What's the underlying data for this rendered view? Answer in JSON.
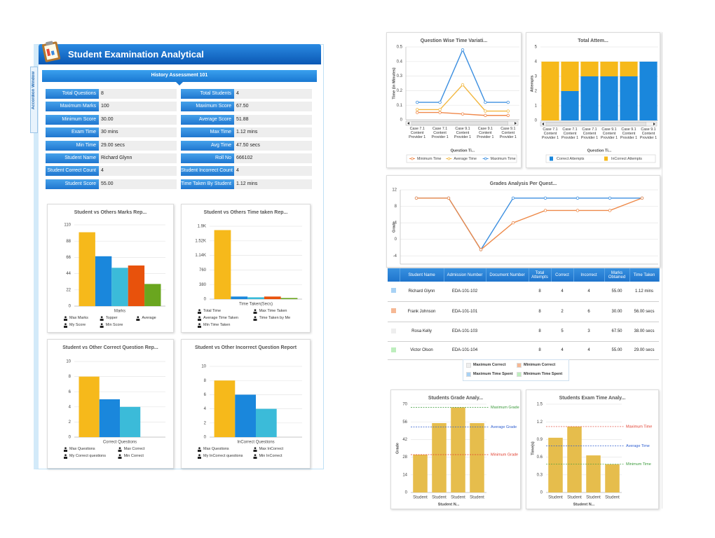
{
  "header": {
    "title": "Student Examination Analytical",
    "subtitle": "History Assessment 101",
    "accordion": "Accordion Window"
  },
  "fields": {
    "left": [
      {
        "label": "Total Questions",
        "value": "8"
      },
      {
        "label": "Maximum Marks",
        "value": "100"
      },
      {
        "label": "Minimum Score",
        "value": "30.00"
      },
      {
        "label": "Exam Time",
        "value": "30 mins"
      },
      {
        "label": "Min Time",
        "value": "29.00 secs"
      },
      {
        "label": "Student Name",
        "value": "Richard Glynn"
      },
      {
        "label": "Student Correct Count",
        "value": "4"
      },
      {
        "label": "Student Score",
        "value": "55.00"
      }
    ],
    "right": [
      {
        "label": "Total Students",
        "value": "4"
      },
      {
        "label": "Maximum Score",
        "value": "67.50"
      },
      {
        "label": "Average Score",
        "value": "51.88"
      },
      {
        "label": "Max Time",
        "value": "1.12 mins"
      },
      {
        "label": "Avg Time",
        "value": "47.50 secs"
      },
      {
        "label": "Roll No",
        "value": "666102"
      },
      {
        "label": "Student Incorrect Count",
        "value": "4"
      },
      {
        "label": "Time Taken By Student",
        "value": "1.12 mins"
      }
    ]
  },
  "chart_data": [
    {
      "type": "bar",
      "title": "Student vs Others Marks Rep...",
      "categories": [
        "Marks"
      ],
      "series": [
        {
          "name": "Max Marks",
          "color": "#f6b91b",
          "values": [
            100
          ]
        },
        {
          "name": "Topper",
          "color": "#1a87dc",
          "values": [
            67.5
          ]
        },
        {
          "name": "Average",
          "color": "#3bbbd9",
          "values": [
            51.88
          ]
        },
        {
          "name": "My Score",
          "color": "#e8520c",
          "values": [
            55
          ]
        },
        {
          "name": "Min Score",
          "color": "#6aa61f",
          "values": [
            30
          ]
        }
      ],
      "ylim": [
        0,
        110
      ],
      "yticks": [
        0,
        22,
        44,
        66,
        88,
        110
      ],
      "grid": true
    },
    {
      "type": "bar",
      "title": "Student vs Others Time taken Rep...",
      "categories": [
        "Time Taken(Secs)"
      ],
      "series": [
        {
          "name": "Total Time",
          "color": "#f6b91b",
          "values": [
            1800
          ]
        },
        {
          "name": "Max Time Taken",
          "color": "#1a87dc",
          "values": [
            67.2
          ]
        },
        {
          "name": "Average Time Taken",
          "color": "#3bbbd9",
          "values": [
            47.5
          ]
        },
        {
          "name": "Time Taken by Me",
          "color": "#e8520c",
          "values": [
            67.2
          ]
        },
        {
          "name": "Min Time Taken",
          "color": "#6aa61f",
          "values": [
            29
          ]
        }
      ],
      "ylim": [
        0,
        1900
      ],
      "yticks": [
        0,
        380,
        760,
        {
          "value": 1140,
          "label": "1.14K"
        },
        {
          "value": 1520,
          "label": "1.52K"
        },
        {
          "value": 1900,
          "label": "1.9K"
        }
      ],
      "grid": true
    },
    {
      "type": "bar",
      "title": "Student vs Other Correct Question Rep...",
      "categories": [
        "Correct Questions"
      ],
      "series": [
        {
          "name": "Max Questions",
          "color": "#f6b91b",
          "values": [
            8
          ]
        },
        {
          "name": "Max Correct",
          "color": "#1a87dc",
          "values": [
            5
          ]
        },
        {
          "name": "My Correct questions",
          "color": "#3bbbd9",
          "values": [
            4
          ]
        },
        {
          "name": "Min Correct",
          "color": "#6aa61f",
          "values": [
            null
          ]
        }
      ],
      "ylim": [
        0,
        10
      ],
      "yticks": [
        0,
        2,
        4,
        6,
        8,
        10
      ],
      "grid": true
    },
    {
      "type": "bar",
      "title": "Student vs Other Incorrect Question Report",
      "categories": [
        "InCorrect Questions"
      ],
      "series": [
        {
          "name": "Max Questions",
          "color": "#f6b91b",
          "values": [
            8
          ]
        },
        {
          "name": "Max InCorrect",
          "color": "#1a87dc",
          "values": [
            6
          ]
        },
        {
          "name": "My InCorrect questions",
          "color": "#3bbbd9",
          "values": [
            4
          ]
        },
        {
          "name": "Min InCorrect",
          "color": "#6aa61f",
          "values": [
            null
          ]
        }
      ],
      "ylim": [
        0,
        10
      ],
      "yticks": [
        0,
        2,
        4,
        6,
        8,
        10
      ],
      "grid": true
    },
    {
      "type": "line",
      "title": "Question Wise Time Variati...",
      "ylabel": "Time (in Minutes)",
      "xlabel": "Question Ti...",
      "categories": [
        "Case 7.1 Content Provider 1",
        "Case 7.1 Content Provider 1",
        "Case 9.1 Content Provider 1",
        "Case 9.1 Content Provider 1",
        "Case 9.1 Content Provider 1"
      ],
      "series": [
        {
          "name": "Minimum Time",
          "color": "#f0884a",
          "values": [
            0.05,
            0.05,
            0.04,
            0.03,
            0.03
          ]
        },
        {
          "name": "Average Time",
          "color": "#f2b740",
          "values": [
            0.07,
            0.07,
            0.24,
            0.06,
            0.06
          ]
        },
        {
          "name": "Maximum Time",
          "color": "#3c8fe0",
          "values": [
            0.12,
            0.12,
            0.48,
            0.12,
            0.12
          ]
        }
      ],
      "ylim": [
        0,
        0.5
      ],
      "yticks": [
        0,
        0.1,
        0.2,
        0.3,
        0.4,
        0.5
      ],
      "grid": true
    },
    {
      "type": "stacked_bar",
      "title": "Total Attem...",
      "ylabel": "Attempts",
      "xlabel": "Question Ti...",
      "categories": [
        "Case 7.1 Content Provider 1",
        "Case 7.1 Content Provider 1",
        "Case 7.1 Content Provider 1",
        "Case 9.1 Content Provider 1",
        "Case 9.1 Content Provider 1",
        "Case 9.1 Content Provider 1"
      ],
      "series": [
        {
          "name": "Correct Attempts",
          "color": "#1a87dc",
          "values": [
            0,
            2,
            3,
            3,
            3,
            4
          ]
        },
        {
          "name": "InCorrect Attempts",
          "color": "#f6b91b",
          "values": [
            4,
            2,
            1,
            1,
            1,
            0
          ]
        }
      ],
      "ylim": [
        0,
        5
      ],
      "yticks": [
        0,
        1,
        2,
        3,
        4,
        5
      ],
      "grid": true
    },
    {
      "type": "line",
      "title": "Grades Analysis Per Quest...",
      "ylabel": "Grade",
      "categories": [
        null,
        null,
        null,
        null,
        null,
        null,
        null,
        null
      ],
      "series": [
        {
          "color": "#3c8fe0",
          "values": [
            10,
            10,
            -2.5,
            10,
            10,
            10,
            10,
            10
          ]
        },
        {
          "color": "#ee8a4a",
          "values": [
            10,
            10,
            -2.5,
            4,
            7,
            7,
            7,
            10
          ]
        }
      ],
      "ylim": [
        -6,
        12
      ],
      "yticks": [
        -4,
        0,
        4,
        8,
        12
      ],
      "grid": true
    },
    {
      "type": "bar",
      "title": "Students Grade Analy...",
      "ylabel": "Grade",
      "xlabel": "Student N...",
      "categories": [
        "Student",
        "Student",
        "Student",
        "Student"
      ],
      "values": [
        30,
        55,
        67.5,
        55
      ],
      "color": "#e6bd4c",
      "reference_lines": [
        {
          "label": "Maximum Grade",
          "value": 67.5,
          "color": "#3a9a3a"
        },
        {
          "label": "Average Grade",
          "value": 51.88,
          "color": "#2f5fd0"
        },
        {
          "label": "Minimum Grade",
          "value": 30,
          "color": "#e03a2a"
        }
      ],
      "ylim": [
        0,
        70
      ],
      "yticks": [
        0,
        14,
        28,
        42,
        56,
        70
      ],
      "grid": true
    },
    {
      "type": "bar",
      "title": "Students Exam Time Analy...",
      "ylabel": "Time(s)",
      "xlabel": "Student N...",
      "categories": [
        "Student",
        "Student",
        "Student",
        "Student"
      ],
      "values": [
        0.93,
        1.12,
        0.63,
        0.48
      ],
      "color": "#e6bd4c",
      "reference_lines": [
        {
          "label": "Maximum Time",
          "value": 1.12,
          "color": "#e03a2a"
        },
        {
          "label": "Average Time",
          "value": 0.79,
          "color": "#2f5fd0"
        },
        {
          "label": "Minimum Time",
          "value": 0.48,
          "color": "#3a9a3a"
        }
      ],
      "ylim": [
        0,
        1.5
      ],
      "yticks": [
        0,
        0.3,
        0.6,
        0.9,
        1.2,
        1.5
      ],
      "grid": true
    }
  ],
  "table": {
    "headers": [
      "Student Name",
      "Admission Number",
      "Document Number",
      "Total Attempts",
      "Correct",
      "Incorrect",
      "Marks Obtained",
      "Time Taken"
    ],
    "rows": [
      {
        "color": "#a8d2f5",
        "name": "Richard Glynn",
        "admission": "EDA-101-102",
        "attempts": "8",
        "correct": "4",
        "incorrect": "4",
        "marks": "55.00",
        "time": "1.12 mins"
      },
      {
        "color": "#f6b894",
        "name": "Frank Johnson",
        "admission": "EDA-101-101",
        "attempts": "8",
        "correct": "2",
        "incorrect": "6",
        "marks": "30.00",
        "time": "56.00 secs"
      },
      {
        "color": "#eeeeee",
        "name": "Rosa Kelly",
        "admission": "EDA-101-103",
        "attempts": "8",
        "correct": "5",
        "incorrect": "3",
        "marks": "67.50",
        "time": "38.00 secs"
      },
      {
        "color": "#bdeebd",
        "name": "Victor Olson",
        "admission": "EDA-101-104",
        "attempts": "8",
        "correct": "4",
        "incorrect": "4",
        "marks": "55.00",
        "time": "29.00 secs"
      }
    ],
    "legend": [
      {
        "label": "Maximum Correct",
        "color": "#eeeeee"
      },
      {
        "label": "Minimum Correct",
        "color": "#f6b894"
      },
      {
        "label": "Maximum Time Spent",
        "color": "#a8d2f5"
      },
      {
        "label": "Minimum Time Spent",
        "color": "#bdeebd"
      }
    ]
  }
}
